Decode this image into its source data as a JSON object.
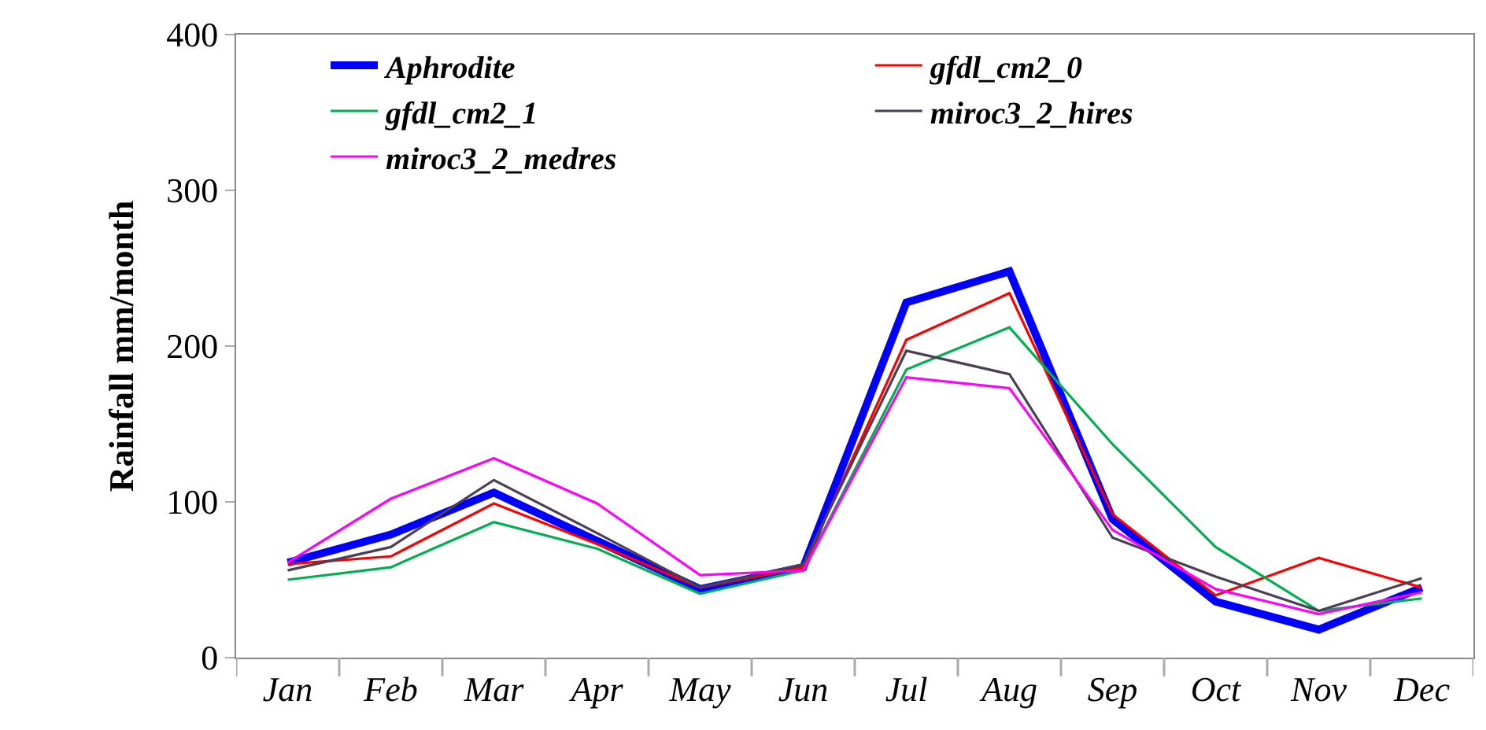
{
  "chart_data": {
    "type": "line",
    "ylabel": "Rainfall mm/month",
    "categories": [
      "Jan",
      "Feb",
      "Mar",
      "Apr",
      "May",
      "Jun",
      "Jul",
      "Aug",
      "Sep",
      "Oct",
      "Nov",
      "Dec"
    ],
    "series": [
      {
        "name": "Aphrodite",
        "color": "#0000ff",
        "values": [
          61,
          79,
          106,
          75,
          44,
          58,
          228,
          248,
          89,
          36,
          18,
          45
        ]
      },
      {
        "name": "gfdl_cm2_0",
        "color": "#ff0000",
        "values": [
          60,
          65,
          99,
          73,
          45,
          58,
          204,
          234,
          92,
          40,
          64,
          45
        ]
      },
      {
        "name": "gfdl_cm2_1",
        "color": "#00b050",
        "values": [
          50,
          58,
          87,
          70,
          41,
          56,
          185,
          212,
          137,
          71,
          30,
          38
        ]
      },
      {
        "name": "miroc3_2_hires",
        "color": "#4b3f55",
        "values": [
          56,
          71,
          114,
          80,
          45,
          60,
          197,
          182,
          77,
          52,
          30,
          51
        ]
      },
      {
        "name": "miroc3_2_medres",
        "color": "#ff00ff",
        "values": [
          61,
          102,
          128,
          99,
          53,
          56,
          180,
          173,
          82,
          44,
          28,
          42
        ]
      }
    ],
    "ylim": [
      0,
      400
    ],
    "yticks": [
      0,
      100,
      200,
      300,
      400
    ],
    "grid": false,
    "legend": "top",
    "marker": "none",
    "line_style": "solid"
  }
}
